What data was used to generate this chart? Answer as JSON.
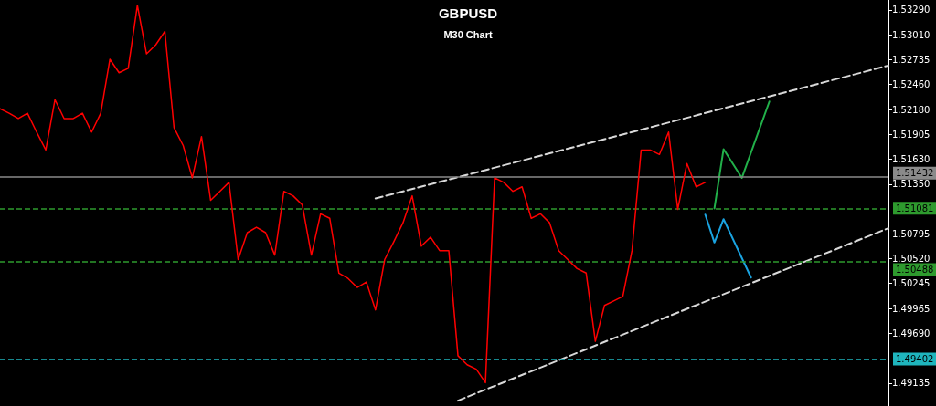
{
  "chart_data": {
    "type": "line",
    "title": "GBPUSD",
    "subtitle": "M30 Chart",
    "categories": [
      null,
      null,
      null,
      null,
      null,
      null,
      null,
      null,
      null,
      null,
      null,
      null,
      null,
      null,
      null,
      null,
      null,
      null,
      null,
      null,
      null,
      null,
      null,
      null,
      null,
      null,
      null,
      null,
      null,
      null,
      null,
      null,
      null,
      null,
      null,
      null,
      null,
      null,
      null,
      null,
      null,
      null,
      null,
      null,
      null,
      null,
      null,
      null,
      null,
      null,
      null,
      null,
      null,
      null,
      null,
      null,
      null,
      null,
      null,
      null,
      null,
      null,
      null,
      null,
      null,
      null,
      null,
      null,
      null,
      null,
      null,
      null,
      null,
      null,
      null,
      null,
      null,
      null,
      null,
      null,
      null,
      null,
      null,
      null,
      null,
      null,
      null,
      null,
      null,
      null,
      null,
      null,
      null,
      null,
      null,
      null,
      null,
      null
    ],
    "ylim": [
      1.4888,
      1.534
    ],
    "yticks": [
      {
        "value": 1.5329,
        "label": "1.53290"
      },
      {
        "value": 1.5301,
        "label": "1.53010"
      },
      {
        "value": 1.52735,
        "label": "1.52735"
      },
      {
        "value": 1.5246,
        "label": "1.52460"
      },
      {
        "value": 1.5218,
        "label": "1.52180"
      },
      {
        "value": 1.51905,
        "label": "1.51905"
      },
      {
        "value": 1.5163,
        "label": "1.51630"
      },
      {
        "value": 1.5135,
        "label": "1.51350"
      },
      {
        "value": 1.50795,
        "label": "1.50795"
      },
      {
        "value": 1.5052,
        "label": "1.50520"
      },
      {
        "value": 1.50245,
        "label": "1.50245"
      },
      {
        "value": 1.49965,
        "label": "1.49965"
      },
      {
        "value": 1.4969,
        "label": "1.49690"
      },
      {
        "value": 1.49135,
        "label": "1.49135"
      }
    ],
    "tick_labels": "y",
    "grid": false,
    "marker": "none",
    "series": [
      {
        "color": "#ff0000",
        "line_style": "solid",
        "values": [
          1.5219,
          1.5214,
          1.5208,
          1.5214,
          1.5193,
          1.5173,
          1.5229,
          1.5208,
          1.5208,
          1.5214,
          1.5193,
          1.5214,
          1.5274,
          1.5259,
          1.5264,
          1.5334,
          1.528,
          1.529,
          1.5305,
          1.5198,
          1.5178,
          1.5142,
          1.5188,
          1.5117,
          1.5127,
          1.5137,
          1.5051,
          1.5081,
          1.5087,
          1.5081,
          1.5056,
          1.5127,
          1.5122,
          1.5112,
          1.5056,
          1.5102,
          1.5097,
          1.5036,
          1.503,
          1.502,
          1.5026,
          1.4995,
          1.5051,
          1.5071,
          1.5092,
          1.5122,
          1.5066,
          1.5076,
          1.5061,
          1.5061,
          1.4944,
          1.4934,
          1.4929,
          1.4914,
          1.5142,
          1.5137,
          1.5127,
          1.5132,
          1.5097,
          1.5102,
          1.5092,
          1.5061,
          1.5051,
          1.5041,
          1.5036,
          1.496,
          1.5,
          1.5005,
          1.501,
          1.5061,
          1.5173,
          1.5173,
          1.5168,
          1.5193,
          1.5107,
          1.5158,
          1.5132,
          1.5137,
          null,
          null,
          null,
          null,
          null,
          null,
          null,
          null,
          null,
          null,
          null,
          null,
          null,
          null,
          null,
          null,
          null,
          null,
          null,
          null
        ]
      },
      {
        "color": "#d8d8d8",
        "line_style": "dashed",
        "values": [
          null,
          null,
          null,
          null,
          null,
          null,
          null,
          null,
          null,
          null,
          null,
          null,
          null,
          null,
          null,
          null,
          null,
          null,
          null,
          null,
          null,
          null,
          null,
          null,
          null,
          null,
          null,
          null,
          null,
          null,
          null,
          null,
          null,
          null,
          null,
          null,
          null,
          null,
          null,
          null,
          null,
          1.5119,
          null,
          null,
          null,
          null,
          null,
          null,
          null,
          null,
          null,
          null,
          null,
          null,
          null,
          null,
          null,
          null,
          null,
          null,
          null,
          null,
          null,
          null,
          null,
          null,
          null,
          null,
          null,
          null,
          null,
          null,
          null,
          null,
          null,
          null,
          null,
          null,
          null,
          null,
          null,
          null,
          null,
          null,
          null,
          null,
          null,
          null,
          null,
          null,
          null,
          null,
          null,
          null,
          null,
          null,
          null,
          1.5267
        ]
      },
      {
        "color": "#d8d8d8",
        "line_style": "dashed",
        "values": [
          null,
          null,
          null,
          null,
          null,
          null,
          null,
          null,
          null,
          null,
          null,
          null,
          null,
          null,
          null,
          null,
          null,
          null,
          null,
          null,
          null,
          null,
          null,
          null,
          null,
          null,
          null,
          null,
          null,
          null,
          null,
          null,
          null,
          null,
          null,
          null,
          null,
          null,
          null,
          null,
          null,
          null,
          null,
          null,
          null,
          null,
          null,
          null,
          null,
          null,
          1.4894,
          null,
          null,
          null,
          null,
          null,
          null,
          null,
          null,
          null,
          null,
          null,
          null,
          null,
          null,
          null,
          null,
          null,
          null,
          null,
          null,
          null,
          null,
          null,
          null,
          null,
          null,
          null,
          null,
          null,
          null,
          null,
          null,
          null,
          null,
          null,
          null,
          null,
          null,
          null,
          null,
          null,
          null,
          null,
          null,
          null,
          null,
          1.5086
        ]
      },
      {
        "color": "#22b04a",
        "line_style": "solid",
        "values": [
          null,
          null,
          null,
          null,
          null,
          null,
          null,
          null,
          null,
          null,
          null,
          null,
          null,
          null,
          null,
          null,
          null,
          null,
          null,
          null,
          null,
          null,
          null,
          null,
          null,
          null,
          null,
          null,
          null,
          null,
          null,
          null,
          null,
          null,
          null,
          null,
          null,
          null,
          null,
          null,
          null,
          null,
          null,
          null,
          null,
          null,
          null,
          null,
          null,
          null,
          null,
          null,
          null,
          null,
          null,
          null,
          null,
          null,
          null,
          null,
          null,
          null,
          null,
          null,
          null,
          null,
          null,
          null,
          null,
          null,
          null,
          null,
          null,
          null,
          null,
          null,
          null,
          null,
          1.5108,
          1.5174,
          null,
          1.5142,
          null,
          null,
          1.5227,
          null,
          null,
          null,
          null,
          null,
          null,
          null,
          null,
          null,
          null,
          null,
          null,
          null
        ]
      },
      {
        "color": "#1aa3e0",
        "line_style": "solid",
        "values": [
          null,
          null,
          null,
          null,
          null,
          null,
          null,
          null,
          null,
          null,
          null,
          null,
          null,
          null,
          null,
          null,
          null,
          null,
          null,
          null,
          null,
          null,
          null,
          null,
          null,
          null,
          null,
          null,
          null,
          null,
          null,
          null,
          null,
          null,
          null,
          null,
          null,
          null,
          null,
          null,
          null,
          null,
          null,
          null,
          null,
          null,
          null,
          null,
          null,
          null,
          null,
          null,
          null,
          null,
          null,
          null,
          null,
          null,
          null,
          null,
          null,
          null,
          null,
          null,
          null,
          null,
          null,
          null,
          null,
          null,
          null,
          null,
          null,
          null,
          null,
          null,
          null,
          1.5101,
          1.507,
          1.5096,
          null,
          null,
          1.5031,
          null,
          null,
          null,
          null,
          null,
          null,
          null,
          null,
          null,
          null,
          null,
          null,
          null,
          null,
          null
        ]
      }
    ],
    "ref_lines": [
      {
        "axis": "y",
        "value": 1.51432,
        "label": "1.51432",
        "color": "#8a8a8a",
        "line_style": "solid"
      },
      {
        "axis": "y",
        "value": 1.51081,
        "label": "1.51081",
        "color": "#2e9a2e",
        "line_style": "dashed"
      },
      {
        "axis": "y",
        "value": 1.50488,
        "label": "1.50488",
        "color": "#2e9a2e",
        "line_style": "dashed"
      },
      {
        "axis": "y",
        "value": 1.49402,
        "label": "1.49402",
        "color": "#1fb5bd",
        "line_style": "dashed"
      }
    ]
  }
}
